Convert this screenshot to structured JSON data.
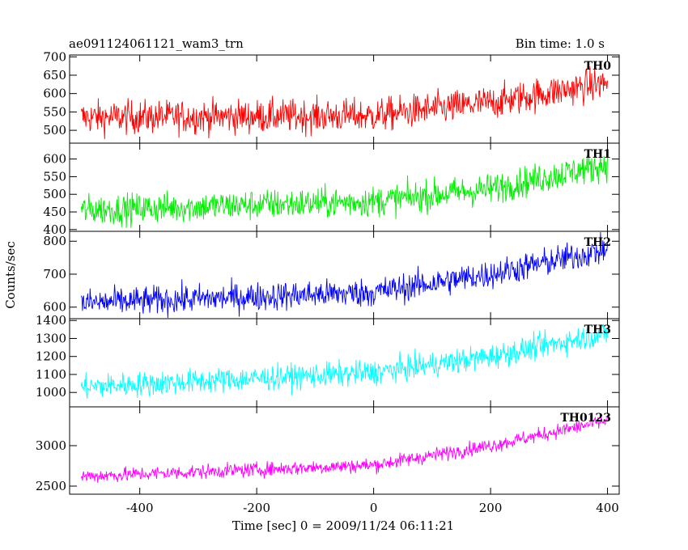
{
  "header": {
    "title": "ae091124061121_wam3_trn",
    "bin_time": "Bin time: 1.0 s"
  },
  "chart_data": {
    "type": "line",
    "title": "ae091124061121_wam3_trn",
    "subtitle": "Bin time: 1.0 s",
    "xlabel": "Time [sec] 0 = 2009/11/24 06:11:21",
    "ylabel": "Counts/sec",
    "xlim": [
      -520,
      420
    ],
    "x_ticks": [
      -400,
      -200,
      0,
      200,
      400
    ],
    "x_range": [
      -500,
      400
    ],
    "bin_time": 1.0,
    "grid": false,
    "panels": [
      {
        "name": "TH0",
        "color": "#ff0000",
        "ylim": [
          465,
          705
        ],
        "y_ticks": [
          500,
          550,
          600,
          650,
          700
        ],
        "trend": [
          {
            "x": -500,
            "y": 535
          },
          {
            "x": 0,
            "y": 540
          },
          {
            "x": 200,
            "y": 575
          },
          {
            "x": 400,
            "y": 630
          }
        ],
        "noise": 23
      },
      {
        "name": "TH1",
        "color": "#00ee00",
        "ylim": [
          395,
          645
        ],
        "y_ticks": [
          400,
          450,
          500,
          550,
          600
        ],
        "trend": [
          {
            "x": -500,
            "y": 455
          },
          {
            "x": 0,
            "y": 480
          },
          {
            "x": 200,
            "y": 515
          },
          {
            "x": 400,
            "y": 585
          }
        ],
        "noise": 22
      },
      {
        "name": "TH2",
        "color": "#0000ff",
        "ylim": [
          565,
          830
        ],
        "y_ticks": [
          600,
          700,
          800
        ],
        "trend": [
          {
            "x": -500,
            "y": 612
          },
          {
            "x": 0,
            "y": 645
          },
          {
            "x": 200,
            "y": 700
          },
          {
            "x": 400,
            "y": 775
          }
        ],
        "noise": 22
      },
      {
        "name": "TH3",
        "color": "#00ffff",
        "ylim": [
          920,
          1410
        ],
        "y_ticks": [
          1000,
          1100,
          1200,
          1300,
          1400
        ],
        "trend": [
          {
            "x": -500,
            "y": 1030
          },
          {
            "x": 0,
            "y": 1110
          },
          {
            "x": 200,
            "y": 1200
          },
          {
            "x": 400,
            "y": 1330
          }
        ],
        "noise": 35
      },
      {
        "name": "TH0123",
        "color": "#ff00ff",
        "ylim": [
          2400,
          3480
        ],
        "y_ticks": [
          2500,
          3000
        ],
        "trend": [
          {
            "x": -500,
            "y": 2620
          },
          {
            "x": 0,
            "y": 2760
          },
          {
            "x": 200,
            "y": 3000
          },
          {
            "x": 400,
            "y": 3310
          }
        ],
        "noise": 45
      }
    ]
  }
}
